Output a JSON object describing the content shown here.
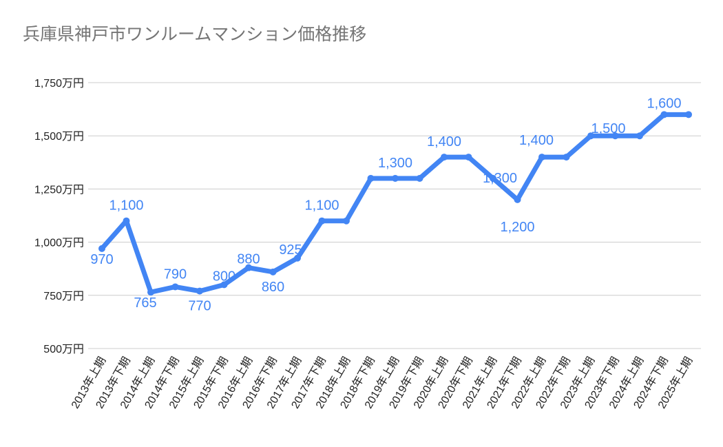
{
  "chart_data": {
    "type": "line",
    "title": "兵庫県神戸市ワンルームマンション価格推移",
    "xlabel": "",
    "ylabel": "",
    "categories": [
      "2013年上期",
      "2013年下期",
      "2014年上期",
      "2014年下期",
      "2015年上期",
      "2015年下期",
      "2016年上期",
      "2016年下期",
      "2017年上期",
      "2017年下期",
      "2018年上期",
      "2018年下期",
      "2019年上期",
      "2019年下期",
      "2020年上期",
      "2020年下期",
      "2021年上期",
      "2021年下期",
      "2022年上期",
      "2022年下期",
      "2023年上期",
      "2023年下期",
      "2024年上期",
      "2024年下期",
      "2025年上期"
    ],
    "series": [
      {
        "values": [
          970,
          1100,
          765,
          790,
          770,
          800,
          880,
          860,
          925,
          1100,
          1100,
          1300,
          1300,
          1300,
          1400,
          1400,
          1300,
          1200,
          1400,
          1400,
          1500,
          1500,
          1500,
          1600,
          1600
        ]
      }
    ],
    "data_labels": [
      "970",
      "1,100",
      "765",
      "790",
      "770",
      "800",
      "880",
      "860",
      "925",
      "1,100",
      null,
      null,
      "1,300",
      null,
      "1,400",
      null,
      "1,300",
      "1,200",
      "1,400",
      null,
      null,
      "1,500",
      null,
      "1,600",
      null
    ],
    "ylim": [
      500,
      1750
    ],
    "yticks": [
      500,
      750,
      1000,
      1250,
      1500,
      1750
    ],
    "ytick_labels": [
      "500万円",
      "750万円",
      "1,000万円",
      "1,250万円",
      "1,500万円",
      "1,750万円"
    ],
    "grid": true,
    "legend": "none",
    "colors": {
      "line": "#4285f4",
      "label": "#4285f4",
      "grid": "#cccccc",
      "title": "#757575"
    }
  }
}
